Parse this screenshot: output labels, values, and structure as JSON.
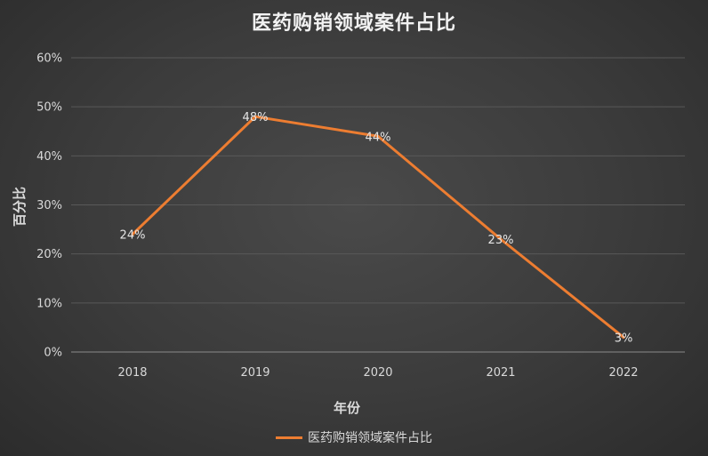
{
  "chart_data": {
    "type": "line",
    "title": "医药购销领域案件占比",
    "xlabel": "年份",
    "ylabel": "百分比",
    "categories": [
      "2018",
      "2019",
      "2020",
      "2021",
      "2022"
    ],
    "series": [
      {
        "name": "医药购销领域案件占比",
        "values": [
          24,
          48,
          44,
          23,
          3
        ],
        "labels": [
          "24%",
          "48%",
          "44%",
          "23%",
          "3%"
        ],
        "color": "#ed7d31"
      }
    ],
    "ylim": [
      0,
      60
    ],
    "yticks": [
      0,
      10,
      20,
      30,
      40,
      50,
      60
    ],
    "ytick_labels": [
      "0%",
      "10%",
      "20%",
      "30%",
      "40%",
      "50%",
      "60%"
    ],
    "grid": true,
    "legend": "bottom"
  }
}
